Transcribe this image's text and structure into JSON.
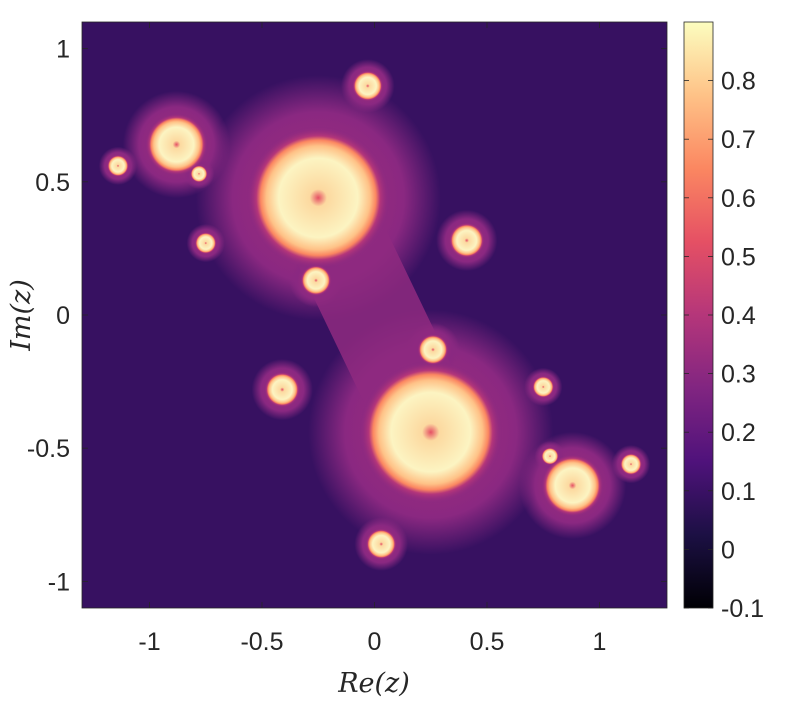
{
  "chart_data": {
    "type": "heatmap",
    "title": "",
    "xlabel": "Re(z)",
    "ylabel": "Im(z)",
    "xlim": [
      -1.3,
      1.3
    ],
    "ylim": [
      -1.1,
      1.1
    ],
    "xticks": [
      -1,
      -0.5,
      0,
      0.5,
      1
    ],
    "xtick_labels": [
      "-1",
      "-0.5",
      "0",
      "0.5",
      "1"
    ],
    "yticks": [
      1,
      0.5,
      0,
      -0.5,
      -1
    ],
    "ytick_labels": [
      "1",
      "0.5",
      "0",
      "-0.5",
      "-1"
    ],
    "colorbar": {
      "colormap": "magma",
      "clim": [
        -0.1,
        0.9
      ],
      "ticks": [
        0.8,
        0.7,
        0.6,
        0.5,
        0.4,
        0.3,
        0.2,
        0.1,
        0,
        -0.1
      ],
      "tick_labels": [
        "0.8",
        "0.7",
        "0.6",
        "0.5",
        "0.4",
        "0.3",
        "0.2",
        "0.1",
        "0",
        "-0.1"
      ]
    },
    "background_level": 0.09,
    "fractal_lobes": [
      {
        "re": -0.25,
        "im": 0.44,
        "size": 0.32
      },
      {
        "re": 0.25,
        "im": -0.44,
        "size": 0.32
      },
      {
        "re": -0.88,
        "im": 0.64,
        "size": 0.14
      },
      {
        "re": 0.88,
        "im": -0.64,
        "size": 0.14
      },
      {
        "re": 0.41,
        "im": 0.28,
        "size": 0.08
      },
      {
        "re": -0.41,
        "im": -0.28,
        "size": 0.08
      },
      {
        "re": -0.03,
        "im": 0.86,
        "size": 0.07
      },
      {
        "re": 0.03,
        "im": -0.86,
        "size": 0.07
      },
      {
        "re": -1.14,
        "im": 0.56,
        "size": 0.05
      },
      {
        "re": 1.14,
        "im": -0.56,
        "size": 0.05
      },
      {
        "re": -0.75,
        "im": 0.27,
        "size": 0.05
      },
      {
        "re": 0.75,
        "im": -0.27,
        "size": 0.05
      },
      {
        "re": -0.26,
        "im": 0.13,
        "size": 0.07
      },
      {
        "re": 0.26,
        "im": -0.13,
        "size": 0.07
      },
      {
        "re": -0.78,
        "im": 0.53,
        "size": 0.04
      },
      {
        "re": 0.78,
        "im": -0.53,
        "size": 0.04
      }
    ],
    "grid": false,
    "colors": {
      "frame": "#262626",
      "background": "#1b0c41"
    }
  }
}
